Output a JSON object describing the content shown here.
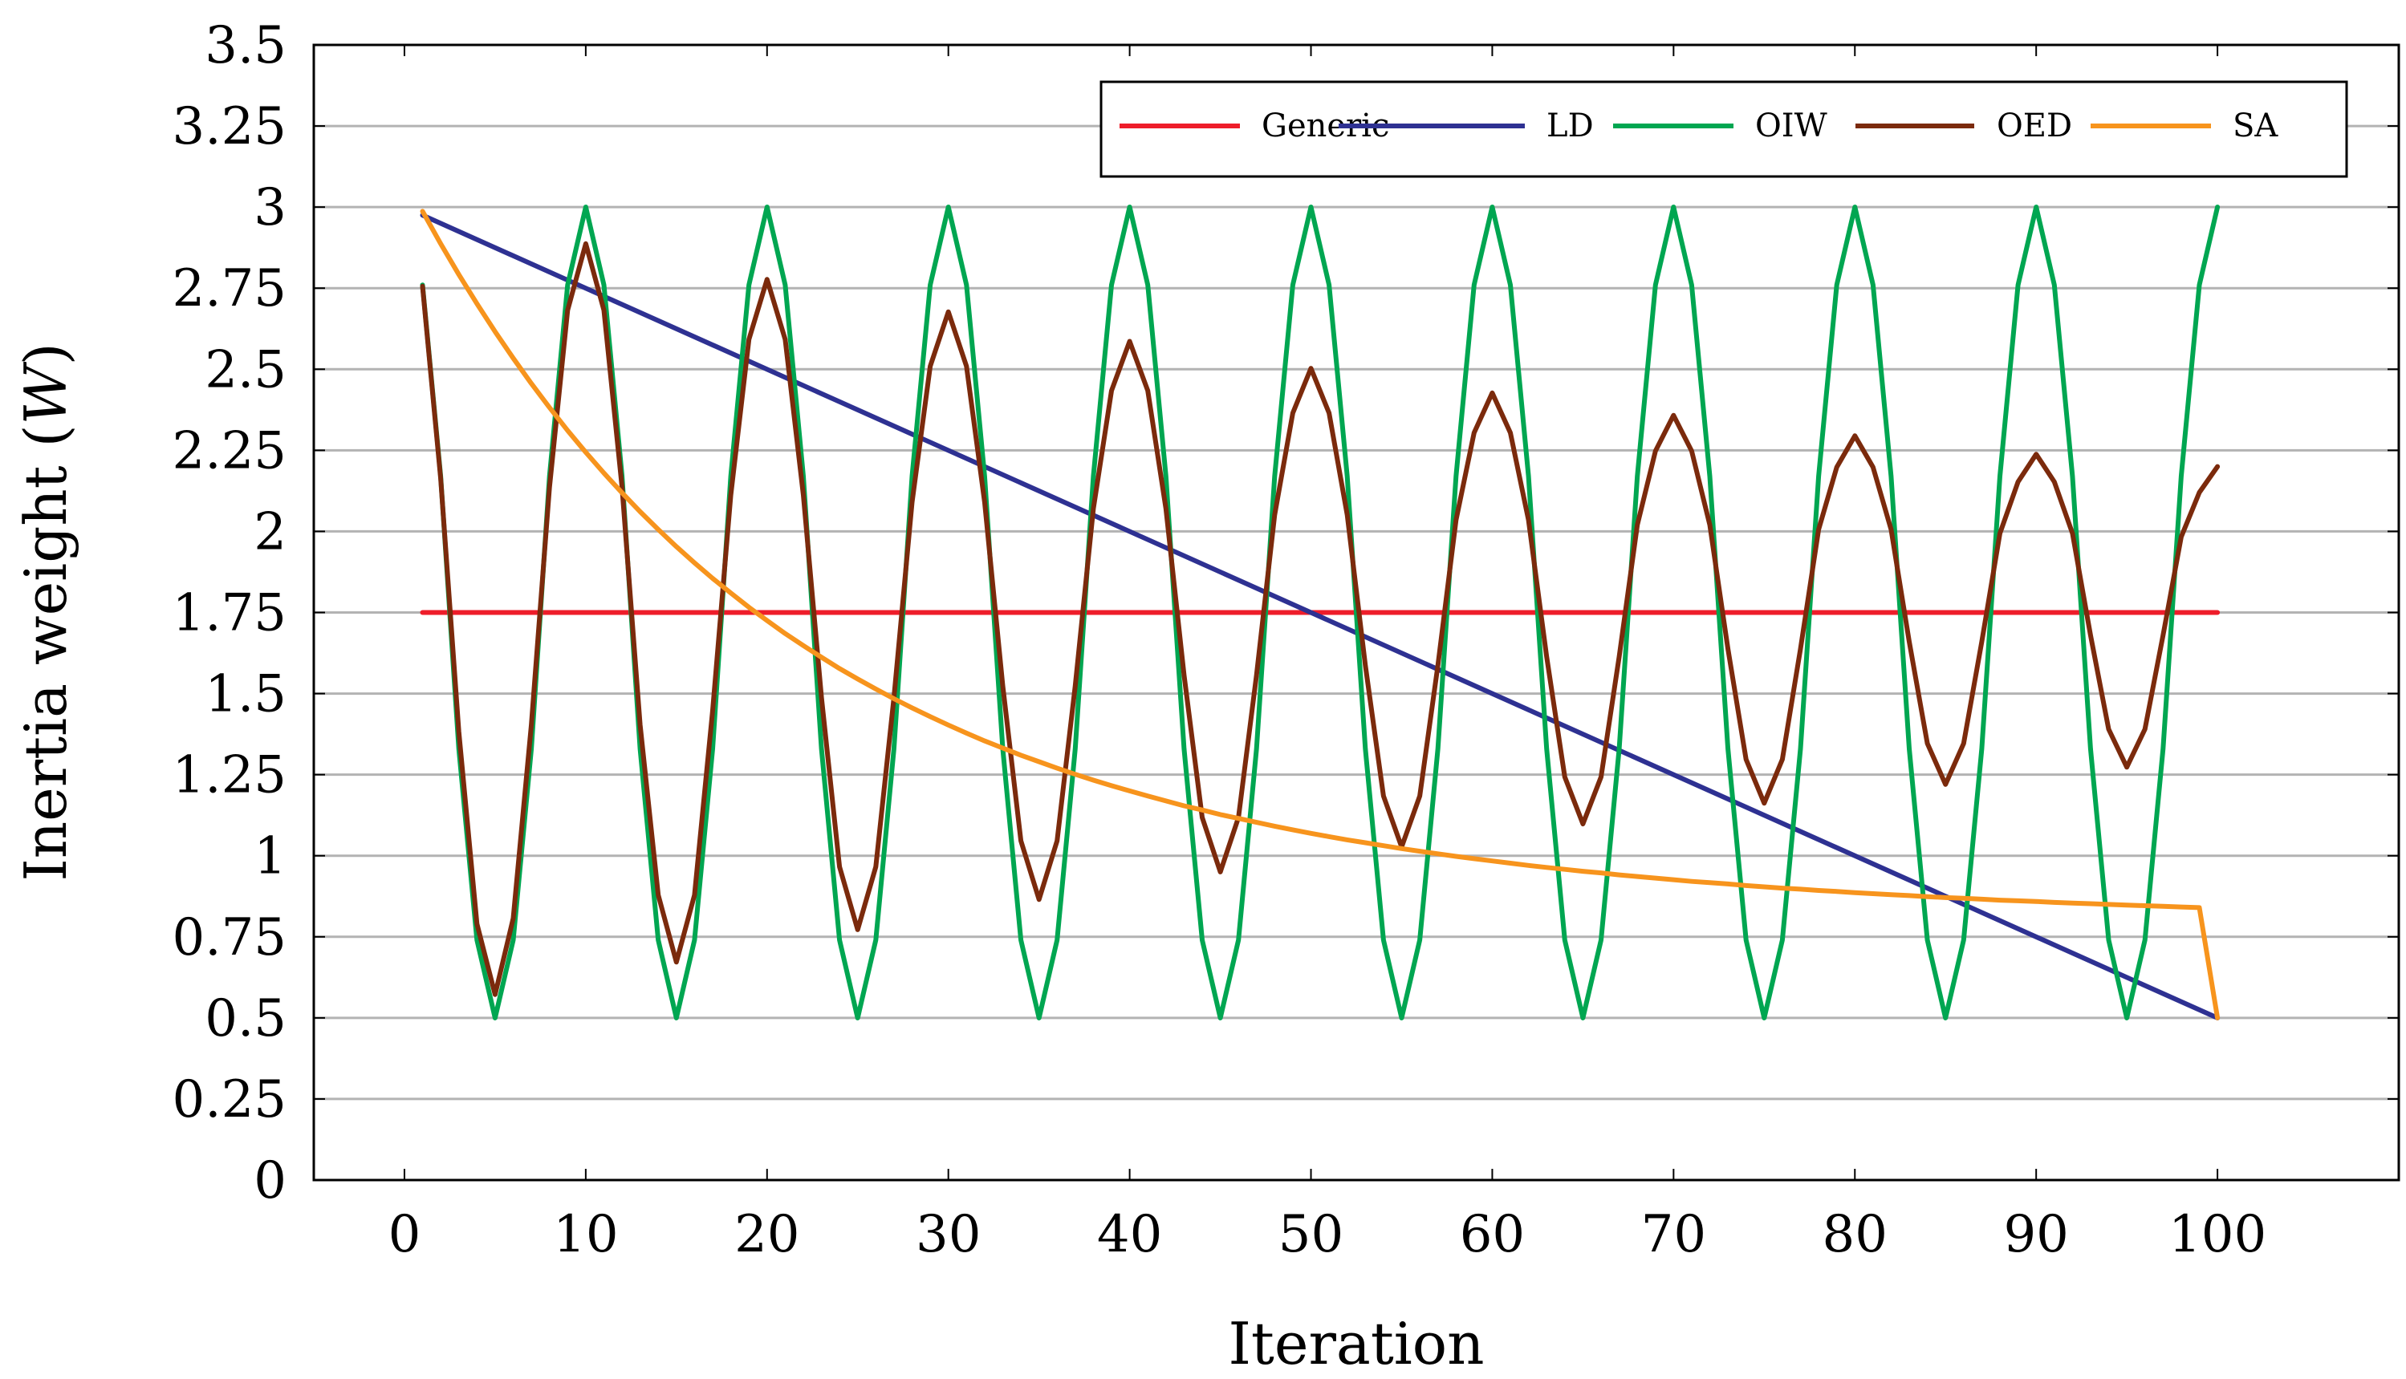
{
  "chart_data": {
    "type": "line",
    "title": "",
    "xlabel": "Iteration",
    "ylabel": "Inertia weight (W)",
    "ylabel_main": "Inertia weight (",
    "ylabel_var": "W",
    "ylabel_close": ")",
    "xlim": [
      -5,
      110
    ],
    "ylim": [
      0,
      3.5
    ],
    "xticks": [
      0,
      10,
      20,
      30,
      40,
      50,
      60,
      70,
      80,
      90,
      100
    ],
    "xtick_labels": [
      "0",
      "10",
      "20",
      "30",
      "40",
      "50",
      "60",
      "70",
      "80",
      "90",
      "100"
    ],
    "yticks": [
      0,
      0.25,
      0.5,
      0.75,
      1,
      1.25,
      1.5,
      1.75,
      2,
      2.25,
      2.5,
      2.75,
      3,
      3.25,
      3.5
    ],
    "ytick_labels": [
      "0",
      "0.25",
      "0.5",
      "0.75",
      "1",
      "1.25",
      "1.5",
      "1.75",
      "2",
      "2.25",
      "2.5",
      "2.75",
      "3",
      "3.25",
      "3.5"
    ],
    "grid": true,
    "legend_position": "top-right",
    "series": [
      {
        "name": "Generic",
        "color": "#ee1d2a",
        "x": [
          1,
          100
        ],
        "y": [
          1.75,
          1.75
        ]
      },
      {
        "name": "LD",
        "color": "#2e3192",
        "x": [
          1,
          100
        ],
        "y": [
          2.975,
          0.5
        ]
      },
      {
        "name": "OIW",
        "color": "#00a651",
        "x": [
          1,
          2,
          3,
          4,
          5,
          6,
          7,
          8,
          9,
          10,
          11,
          12,
          13,
          14,
          15,
          16,
          17,
          18,
          19,
          20,
          21,
          22,
          23,
          24,
          25,
          26,
          27,
          28,
          29,
          30,
          31,
          32,
          33,
          34,
          35,
          36,
          37,
          38,
          39,
          40,
          41,
          42,
          43,
          44,
          45,
          46,
          47,
          48,
          49,
          50,
          51,
          52,
          53,
          54,
          55,
          56,
          57,
          58,
          59,
          60,
          61,
          62,
          63,
          64,
          65,
          66,
          67,
          68,
          69,
          70,
          71,
          72,
          73,
          74,
          75,
          76,
          77,
          78,
          79,
          80,
          81,
          82,
          83,
          84,
          85,
          86,
          87,
          88,
          89,
          90,
          91,
          92,
          93,
          94,
          95,
          96,
          97,
          98,
          99,
          100
        ],
        "y": [
          2.76,
          2.17,
          1.33,
          0.74,
          0.5,
          0.74,
          1.33,
          2.17,
          2.76,
          3.0,
          2.76,
          2.17,
          1.33,
          0.74,
          0.5,
          0.74,
          1.33,
          2.17,
          2.76,
          3.0,
          2.76,
          2.17,
          1.33,
          0.74,
          0.5,
          0.74,
          1.33,
          2.17,
          2.76,
          3.0,
          2.76,
          2.17,
          1.33,
          0.74,
          0.5,
          0.74,
          1.33,
          2.17,
          2.76,
          3.0,
          2.76,
          2.17,
          1.33,
          0.74,
          0.5,
          0.74,
          1.33,
          2.17,
          2.76,
          3.0,
          2.76,
          2.17,
          1.33,
          0.74,
          0.5,
          0.74,
          1.33,
          2.17,
          2.76,
          3.0,
          2.76,
          2.17,
          1.33,
          0.74,
          0.5,
          0.74,
          1.33,
          2.17,
          2.76,
          3.0,
          2.76,
          2.17,
          1.33,
          0.74,
          0.5,
          0.74,
          1.33,
          2.17,
          2.76,
          3.0,
          2.76,
          2.17,
          1.33,
          0.74,
          0.5,
          0.74,
          1.33,
          2.17,
          2.76,
          3.0,
          2.76,
          2.17,
          1.33,
          0.74,
          0.5,
          0.74,
          1.33,
          2.17,
          2.76,
          3.0
        ]
      },
      {
        "name": "OED",
        "color": "#7b2a0c",
        "x": [
          1,
          2,
          3,
          4,
          5,
          6,
          7,
          8,
          9,
          10,
          11,
          12,
          13,
          14,
          15,
          16,
          17,
          18,
          19,
          20,
          21,
          22,
          23,
          24,
          25,
          26,
          27,
          28,
          29,
          30,
          31,
          32,
          33,
          34,
          35,
          36,
          37,
          38,
          39,
          40,
          41,
          42,
          43,
          44,
          45,
          46,
          47,
          48,
          49,
          50,
          51,
          52,
          53,
          54,
          55,
          56,
          57,
          58,
          59,
          60,
          61,
          62,
          63,
          64,
          65,
          66,
          67,
          68,
          69,
          70,
          71,
          72,
          73,
          74,
          75,
          76,
          77,
          78,
          79,
          80,
          81,
          82,
          83,
          84,
          85,
          86,
          87,
          88,
          89,
          90,
          91,
          92,
          93,
          94,
          95,
          96,
          97,
          98,
          99,
          100
        ],
        "y": [
          2.756,
          2.163,
          1.383,
          0.79,
          0.572,
          0.807,
          1.404,
          2.136,
          2.682,
          2.887,
          2.682,
          2.136,
          1.404,
          0.879,
          0.672,
          0.879,
          1.448,
          2.112,
          2.592,
          2.777,
          2.592,
          2.112,
          1.488,
          0.966,
          0.772,
          0.966,
          1.488,
          2.09,
          2.509,
          2.677,
          2.509,
          2.09,
          1.524,
          1.046,
          0.865,
          1.046,
          1.524,
          2.07,
          2.434,
          2.586,
          2.434,
          2.07,
          1.557,
          1.118,
          0.95,
          1.118,
          1.557,
          2.051,
          2.365,
          2.503,
          2.365,
          2.051,
          1.587,
          1.184,
          1.027,
          1.184,
          1.587,
          2.035,
          2.304,
          2.427,
          2.304,
          2.035,
          1.614,
          1.243,
          1.098,
          1.243,
          1.614,
          2.02,
          2.248,
          2.358,
          2.248,
          2.02,
          1.638,
          1.297,
          1.162,
          1.297,
          1.638,
          2.006,
          2.198,
          2.295,
          2.198,
          2.006,
          1.66,
          1.346,
          1.22,
          1.346,
          1.66,
          1.994,
          2.153,
          2.238,
          2.153,
          1.994,
          1.68,
          1.39,
          1.273,
          1.39,
          1.68,
          1.983,
          2.12,
          2.2
        ]
      },
      {
        "name": "SA",
        "color": "#f7941d",
        "x": [
          1,
          2,
          3,
          4,
          5,
          6,
          7,
          8,
          9,
          10,
          11,
          12,
          13,
          14,
          15,
          16,
          17,
          18,
          19,
          20,
          21,
          22,
          23,
          24,
          25,
          26,
          27,
          28,
          29,
          30,
          31,
          32,
          33,
          34,
          35,
          36,
          37,
          38,
          39,
          40,
          41,
          42,
          43,
          44,
          45,
          46,
          47,
          48,
          49,
          50,
          51,
          52,
          53,
          54,
          55,
          56,
          57,
          58,
          59,
          60,
          61,
          62,
          63,
          64,
          65,
          66,
          67,
          68,
          69,
          70,
          71,
          72,
          73,
          74,
          75,
          76,
          77,
          78,
          79,
          80,
          81,
          82,
          83,
          84,
          85,
          86,
          87,
          88,
          89,
          90,
          91,
          92,
          93,
          94,
          95,
          96,
          97,
          98,
          99,
          100
        ],
        "y": [
          2.987,
          2.887,
          2.792,
          2.702,
          2.616,
          2.534,
          2.456,
          2.382,
          2.311,
          2.244,
          2.18,
          2.119,
          2.061,
          2.006,
          1.953,
          1.903,
          1.855,
          1.81,
          1.766,
          1.725,
          1.685,
          1.648,
          1.612,
          1.577,
          1.545,
          1.514,
          1.484,
          1.456,
          1.429,
          1.403,
          1.378,
          1.354,
          1.332,
          1.31,
          1.29,
          1.27,
          1.251,
          1.233,
          1.216,
          1.2,
          1.184,
          1.169,
          1.154,
          1.141,
          1.127,
          1.115,
          1.103,
          1.091,
          1.08,
          1.069,
          1.059,
          1.049,
          1.04,
          1.031,
          1.022,
          1.014,
          1.006,
          0.998,
          0.991,
          0.984,
          0.977,
          0.97,
          0.964,
          0.958,
          0.952,
          0.947,
          0.941,
          0.936,
          0.931,
          0.926,
          0.921,
          0.917,
          0.913,
          0.908,
          0.904,
          0.9,
          0.897,
          0.893,
          0.89,
          0.886,
          0.883,
          0.88,
          0.877,
          0.874,
          0.871,
          0.869,
          0.866,
          0.863,
          0.861,
          0.859,
          0.856,
          0.854,
          0.852,
          0.85,
          0.848,
          0.846,
          0.844,
          0.842,
          0.84,
          0.5
        ]
      }
    ]
  }
}
